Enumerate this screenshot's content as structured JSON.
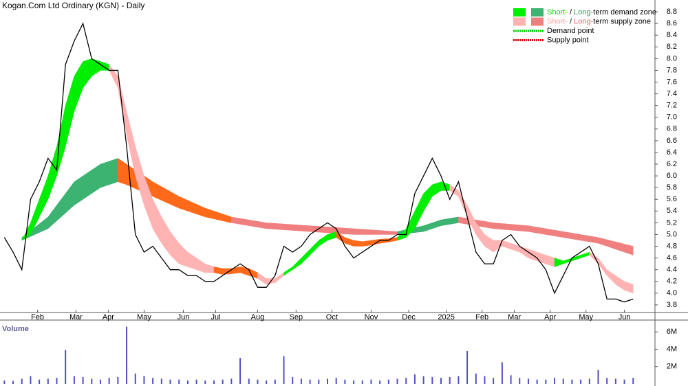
{
  "chart_data": [
    {
      "type": "line",
      "title": "Kogan.Com Ltd Ordinary (KGN) - Daily",
      "x": [
        0,
        1,
        2,
        3,
        4,
        5,
        6,
        7,
        8,
        9,
        10,
        11,
        12,
        13,
        14,
        15,
        16,
        17,
        18,
        19,
        20,
        21,
        22,
        23,
        24,
        25,
        26,
        27,
        28,
        29,
        30,
        31,
        32,
        33,
        34,
        35,
        36,
        37,
        38,
        39,
        40,
        41,
        42,
        43,
        44,
        45,
        46,
        47,
        48,
        49,
        50,
        51,
        52,
        53,
        54,
        55,
        56,
        57,
        58,
        59,
        60,
        61,
        62,
        63,
        64,
        65,
        66,
        67,
        68,
        69,
        70,
        71,
        72
      ],
      "xlim": [
        -0.5,
        74.5
      ],
      "xticks": [
        {
          "value": 3.8,
          "label": "Feb"
        },
        {
          "value": 8.2,
          "label": "Mar"
        },
        {
          "value": 11.9,
          "label": "Apr"
        },
        {
          "value": 16.0,
          "label": "May"
        },
        {
          "value": 20.5,
          "label": "Jun"
        },
        {
          "value": 24.2,
          "label": "Jul"
        },
        {
          "value": 29.0,
          "label": "Aug"
        },
        {
          "value": 33.4,
          "label": "Sep"
        },
        {
          "value": 37.5,
          "label": "Oct"
        },
        {
          "value": 42.0,
          "label": "Nov"
        },
        {
          "value": 46.3,
          "label": "Dec"
        },
        {
          "value": 50.6,
          "label": "2025"
        },
        {
          "value": 54.7,
          "label": "Feb"
        },
        {
          "value": 58.4,
          "label": "Mar"
        },
        {
          "value": 62.5,
          "label": "Apr"
        },
        {
          "value": 66.6,
          "label": "May"
        },
        {
          "value": 71.0,
          "label": "Jun"
        }
      ],
      "ylim": [
        3.67,
        9.0
      ],
      "yticks": [
        3.8,
        {
          "value": 4.0,
          "label": "4.0"
        },
        4.2,
        4.4,
        4.6,
        4.8,
        {
          "value": 5.0,
          "label": "5.0"
        },
        5.2,
        5.4,
        5.6,
        5.8,
        {
          "value": 6.0,
          "label": "6.0"
        },
        6.2,
        6.4,
        6.6,
        6.8,
        {
          "value": 7.0,
          "label": "7.0"
        },
        7.2,
        7.4,
        7.6,
        7.8,
        {
          "value": 8.0,
          "label": "8.0"
        },
        8.2,
        8.4,
        8.6,
        8.8
      ],
      "series": [
        {
          "color": "#000000",
          "values": [
            4.95,
            4.7,
            4.4,
            5.6,
            5.9,
            6.3,
            6.1,
            7.9,
            8.3,
            8.6,
            8.0,
            7.9,
            7.8,
            7.8,
            6.5,
            5.0,
            4.7,
            4.8,
            4.6,
            4.4,
            4.4,
            4.3,
            4.3,
            4.2,
            4.2,
            4.3,
            4.4,
            4.5,
            4.4,
            4.1,
            4.1,
            4.3,
            4.8,
            4.7,
            4.8,
            5.0,
            5.1,
            5.2,
            5.1,
            4.8,
            4.6,
            4.7,
            4.8,
            4.9,
            4.9,
            5.0,
            5.0,
            5.7,
            6.0,
            6.3,
            6.0,
            5.6,
            5.9,
            5.3,
            4.7,
            4.5,
            4.5,
            4.9,
            5.0,
            4.8,
            4.7,
            4.6,
            4.4,
            4.0,
            4.3,
            4.6,
            4.7,
            4.8,
            4.5,
            3.9,
            3.9,
            3.85,
            3.9
          ]
        }
      ],
      "zones": [
        {
          "color": "#3cb371",
          "x": [
            2,
            5,
            8,
            11,
            13
          ],
          "upper": [
            4.95,
            5.3,
            5.9,
            6.2,
            6.3
          ],
          "lower": [
            4.9,
            5.1,
            5.5,
            5.8,
            5.9
          ]
        },
        {
          "color": "#ff6a1a",
          "x": [
            13,
            14,
            17,
            20,
            23,
            26
          ],
          "upper": [
            6.3,
            6.2,
            5.9,
            5.65,
            5.45,
            5.3
          ],
          "lower": [
            5.9,
            5.85,
            5.65,
            5.45,
            5.3,
            5.2
          ]
        },
        {
          "color": "#f08080",
          "x": [
            26,
            30,
            35,
            40,
            45
          ],
          "upper": [
            5.3,
            5.2,
            5.15,
            5.1,
            5.05
          ],
          "lower": [
            5.2,
            5.1,
            5.05,
            5.0,
            5.0
          ]
        },
        {
          "color": "#3cb371",
          "x": [
            45,
            48,
            50,
            52
          ],
          "upper": [
            5.05,
            5.15,
            5.25,
            5.3
          ],
          "lower": [
            5.0,
            5.05,
            5.15,
            5.2
          ]
        },
        {
          "color": "#f08080",
          "x": [
            52,
            56,
            60,
            64,
            68,
            72
          ],
          "upper": [
            5.3,
            5.2,
            5.15,
            5.05,
            4.95,
            4.8
          ],
          "lower": [
            5.2,
            5.1,
            5.05,
            4.95,
            4.85,
            4.65
          ]
        },
        {
          "color": "#00ee00",
          "x": [
            2,
            3,
            4,
            5,
            6,
            7,
            8,
            9,
            10,
            11,
            12
          ],
          "upper": [
            4.9,
            5.2,
            5.6,
            6.0,
            6.5,
            7.2,
            7.7,
            7.95,
            8.0,
            7.95,
            7.9
          ],
          "lower": [
            4.9,
            5.0,
            5.3,
            5.6,
            6.0,
            6.5,
            7.1,
            7.5,
            7.7,
            7.8,
            7.8
          ]
        },
        {
          "color": "#ffb3b3",
          "x": [
            12,
            13,
            14,
            15,
            16,
            17,
            18,
            19,
            20,
            21,
            22,
            23,
            24
          ],
          "upper": [
            7.9,
            7.7,
            7.1,
            6.5,
            6.0,
            5.6,
            5.3,
            5.05,
            4.85,
            4.7,
            4.6,
            4.5,
            4.45
          ],
          "lower": [
            7.8,
            7.5,
            6.7,
            6.0,
            5.5,
            5.1,
            4.85,
            4.65,
            4.5,
            4.45,
            4.4,
            4.35,
            4.35
          ]
        },
        {
          "color": "#ff6a1a",
          "x": [
            24,
            25,
            26,
            27,
            28,
            29
          ],
          "upper": [
            4.45,
            4.42,
            4.42,
            4.45,
            4.42,
            4.35
          ],
          "lower": [
            4.35,
            4.32,
            4.33,
            4.35,
            4.3,
            4.25
          ]
        },
        {
          "color": "#ffb3b3",
          "x": [
            29,
            30,
            31,
            32
          ],
          "upper": [
            4.35,
            4.25,
            4.25,
            4.35
          ],
          "lower": [
            4.25,
            4.15,
            4.18,
            4.3
          ]
        },
        {
          "color": "#00ee00",
          "x": [
            32,
            33,
            34,
            35,
            36,
            37,
            38
          ],
          "upper": [
            4.35,
            4.45,
            4.6,
            4.75,
            4.9,
            5.0,
            5.05
          ],
          "lower": [
            4.3,
            4.4,
            4.5,
            4.65,
            4.8,
            4.9,
            4.95
          ]
        },
        {
          "color": "#ff6a1a",
          "x": [
            38,
            39,
            40,
            41,
            42,
            43,
            44,
            45
          ],
          "upper": [
            5.05,
            4.95,
            4.9,
            4.88,
            4.9,
            4.92,
            4.93,
            4.95
          ],
          "lower": [
            4.95,
            4.85,
            4.8,
            4.8,
            4.82,
            4.85,
            4.87,
            4.9
          ]
        },
        {
          "color": "#00ee00",
          "x": [
            45,
            46,
            47,
            48,
            49,
            50,
            51
          ],
          "upper": [
            4.95,
            5.1,
            5.4,
            5.7,
            5.85,
            5.9,
            5.85
          ],
          "lower": [
            4.9,
            4.95,
            5.1,
            5.4,
            5.65,
            5.75,
            5.75
          ]
        },
        {
          "color": "#ffb3b3",
          "x": [
            51,
            52,
            53,
            54,
            55,
            56,
            57,
            58,
            59,
            60,
            61,
            62,
            63
          ],
          "upper": [
            5.85,
            5.75,
            5.5,
            5.2,
            5.0,
            4.9,
            4.9,
            4.85,
            4.8,
            4.75,
            4.7,
            4.65,
            4.6
          ],
          "lower": [
            5.75,
            5.65,
            5.3,
            5.0,
            4.8,
            4.7,
            4.8,
            4.75,
            4.7,
            4.6,
            4.55,
            4.5,
            4.45
          ]
        },
        {
          "color": "#00ee00",
          "x": [
            63,
            64,
            65,
            66,
            67
          ],
          "upper": [
            4.6,
            4.55,
            4.6,
            4.65,
            4.7
          ],
          "lower": [
            4.45,
            4.5,
            4.55,
            4.6,
            4.65
          ]
        },
        {
          "color": "#ffb3b3",
          "x": [
            67,
            68,
            69,
            70,
            71,
            72
          ],
          "upper": [
            4.7,
            4.6,
            4.4,
            4.3,
            4.2,
            4.15
          ],
          "lower": [
            4.65,
            4.5,
            4.3,
            4.15,
            4.05,
            4.0
          ]
        }
      ],
      "legend": [
        {
          "swatches": [
            "#00ee00",
            "#3cb371"
          ],
          "parts": [
            {
              "text": "Short-",
              "color": "#00dd00"
            },
            {
              "text": " / ",
              "color": "#000000"
            },
            {
              "text": "Long-",
              "color": "#2e9e5e"
            },
            {
              "text": "term demand zone",
              "color": "#000000"
            }
          ]
        },
        {
          "swatches": [
            "#ffb3b3",
            "#f08080"
          ],
          "parts": [
            {
              "text": "Short-",
              "color": "#ffa0a0"
            },
            {
              "text": " / ",
              "color": "#000000"
            },
            {
              "text": "Long-",
              "color": "#f06060"
            },
            {
              "text": "term supply zone",
              "color": "#000000"
            }
          ]
        },
        {
          "line": "#00cc00",
          "parts": [
            {
              "text": "Demand point",
              "color": "#000000"
            }
          ]
        },
        {
          "line": "#dd0000",
          "parts": [
            {
              "text": "Supply point",
              "color": "#000000"
            }
          ]
        }
      ]
    },
    {
      "type": "bar",
      "title": "Volume",
      "ylim": [
        0,
        7200000
      ],
      "yticks": [
        {
          "value": 2000000,
          "label": "2M"
        },
        {
          "value": 4000000,
          "label": "4M"
        },
        {
          "value": 6000000,
          "label": "6M"
        }
      ],
      "series": [
        {
          "color": "#5050c0",
          "values": [
            400000,
            350000,
            600000,
            900000,
            500000,
            600000,
            700000,
            3900000,
            900000,
            800000,
            600000,
            500000,
            700000,
            800000,
            6600000,
            1200000,
            900000,
            700000,
            600000,
            500000,
            500000,
            400000,
            500000,
            400000,
            400000,
            500000,
            600000,
            3000000,
            600000,
            500000,
            400000,
            500000,
            3200000,
            800000,
            600000,
            500000,
            500000,
            600000,
            700000,
            500000,
            400000,
            400000,
            500000,
            400000,
            500000,
            600000,
            700000,
            1100000,
            900000,
            800000,
            700000,
            800000,
            900000,
            3800000,
            1200000,
            900000,
            700000,
            2500000,
            1000000,
            700000,
            600000,
            500000,
            500000,
            700000,
            600000,
            500000,
            500000,
            600000,
            1600000,
            700000,
            600000,
            500000,
            700000
          ]
        }
      ]
    }
  ]
}
